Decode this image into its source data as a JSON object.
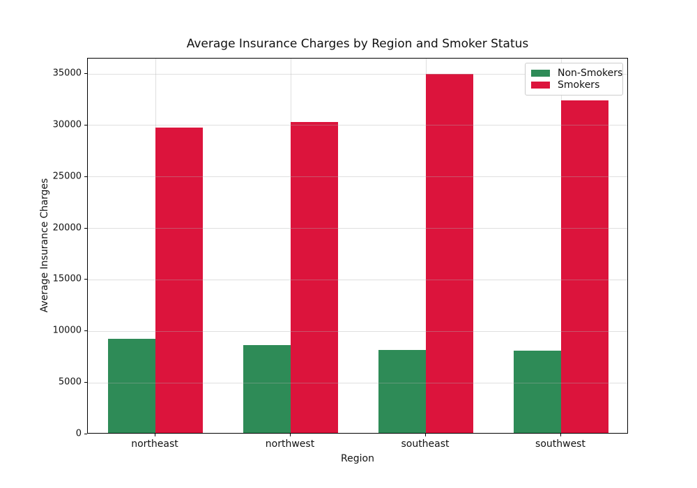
{
  "chart_data": {
    "type": "bar",
    "title": "Average Insurance Charges by Region and Smoker Status",
    "xlabel": "Region",
    "ylabel": "Average Insurance Charges",
    "categories": [
      "northeast",
      "northwest",
      "southeast",
      "southwest"
    ],
    "series": [
      {
        "name": "Non-Smokers",
        "color": "#2E8B57",
        "values": [
          9165.53,
          8556.46,
          8032.22,
          8019.28
        ]
      },
      {
        "name": "Smokers",
        "color": "#DC143C",
        "values": [
          29673.54,
          30192.0,
          34844.99,
          32269.06
        ]
      }
    ],
    "ylim": [
      0,
      36500
    ],
    "y_ticks": [
      0,
      5000,
      10000,
      15000,
      20000,
      25000,
      30000,
      35000
    ],
    "grid": true,
    "grid_color": "rgba(176,176,176,0.4)",
    "legend_position": "upper right",
    "bar_width_fraction": 0.35
  }
}
